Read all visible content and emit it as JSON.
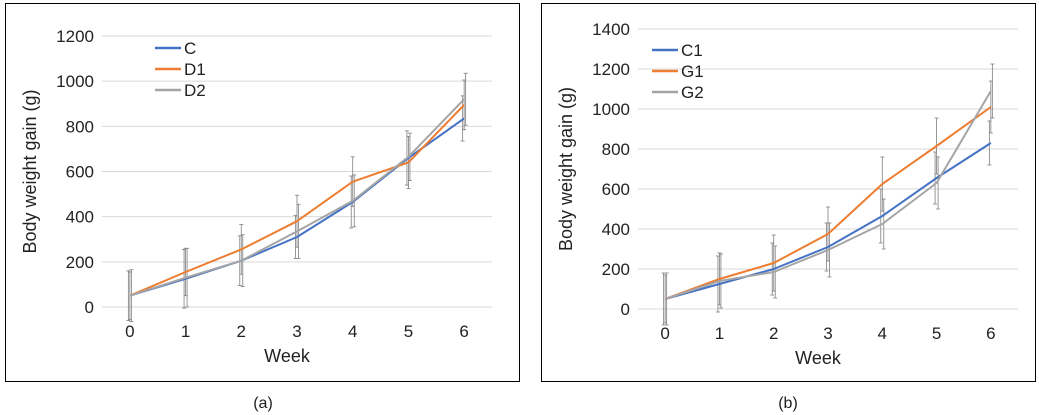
{
  "figure": {
    "panels": [
      {
        "caption": "(a)"
      },
      {
        "caption": "(b)"
      }
    ]
  },
  "chart_data": [
    {
      "type": "line",
      "caption": "(a)",
      "xlabel": "Week",
      "ylabel": "Body weight gain (g)",
      "x": [
        0,
        1,
        2,
        3,
        4,
        5,
        6
      ],
      "ylim": [
        0,
        1200
      ],
      "yticks": [
        0,
        200,
        400,
        600,
        800,
        1000,
        1200
      ],
      "grid": true,
      "legend_position": "top-left",
      "series": [
        {
          "name": "C",
          "color": "#4472C4",
          "values": [
            50,
            125,
            205,
            310,
            465,
            660,
            835
          ]
        },
        {
          "name": "D1",
          "color": "#ED7D31",
          "values": [
            50,
            155,
            255,
            380,
            555,
            640,
            895
          ]
        },
        {
          "name": "D2",
          "color": "#A5A5A5",
          "values": [
            50,
            130,
            205,
            335,
            470,
            665,
            920
          ]
        }
      ],
      "error_bars": [
        {
          "series": "C",
          "errors": [
            110,
            130,
            110,
            95,
            115,
            120,
            100
          ]
        },
        {
          "series": "D1",
          "errors": [
            105,
            105,
            110,
            115,
            110,
            115,
            110
          ]
        },
        {
          "series": "D2",
          "errors": [
            115,
            130,
            115,
            120,
            115,
            105,
            115
          ]
        }
      ]
    },
    {
      "type": "line",
      "caption": "(b)",
      "xlabel": "Week",
      "ylabel": "Body weight gain (g)",
      "x": [
        0,
        1,
        2,
        3,
        4,
        5,
        6
      ],
      "ylim": [
        0,
        1400
      ],
      "yticks": [
        0,
        200,
        400,
        600,
        800,
        1000,
        1200,
        1400
      ],
      "grid": true,
      "legend_position": "top-left",
      "series": [
        {
          "name": "C1",
          "color": "#4472C4",
          "values": [
            50,
            125,
            200,
            310,
            465,
            655,
            830
          ]
        },
        {
          "name": "G1",
          "color": "#ED7D31",
          "values": [
            50,
            150,
            230,
            375,
            625,
            815,
            1010
          ]
        },
        {
          "name": "G2",
          "color": "#A5A5A5",
          "values": [
            50,
            140,
            185,
            295,
            425,
            630,
            1090
          ]
        }
      ],
      "error_bars": [
        {
          "series": "C1",
          "errors": [
            130,
            140,
            130,
            120,
            135,
            130,
            110
          ]
        },
        {
          "series": "G1",
          "errors": [
            120,
            130,
            140,
            135,
            135,
            140,
            130
          ]
        },
        {
          "series": "G2",
          "errors": [
            130,
            135,
            130,
            135,
            125,
            130,
            135
          ]
        }
      ]
    }
  ]
}
